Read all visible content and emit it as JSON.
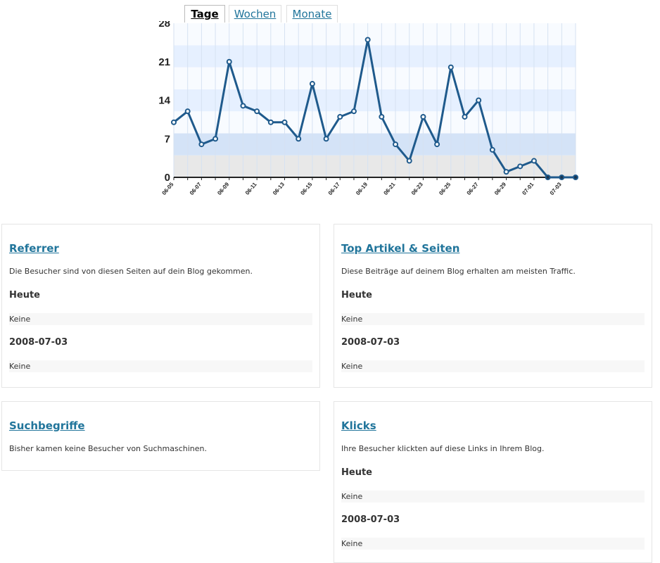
{
  "tabs": [
    {
      "label": "Tage",
      "active": true
    },
    {
      "label": "Wochen",
      "active": false
    },
    {
      "label": "Monate",
      "active": false
    }
  ],
  "chart_data": {
    "type": "line",
    "x": [
      "06-05",
      "06-06",
      "06-07",
      "06-08",
      "06-09",
      "06-10",
      "06-11",
      "06-12",
      "06-13",
      "06-14",
      "06-15",
      "06-16",
      "06-17",
      "06-18",
      "06-19",
      "06-20",
      "06-21",
      "06-22",
      "06-23",
      "06-24",
      "06-25",
      "06-26",
      "06-27",
      "06-28",
      "06-29",
      "06-30",
      "07-01",
      "07-02",
      "07-03",
      "07-04"
    ],
    "x_tick_labels": [
      "06-05",
      "06-07",
      "06-09",
      "06-11",
      "06-13",
      "06-15",
      "06-17",
      "06-19",
      "06-21",
      "06-23",
      "06-25",
      "06-27",
      "06-29",
      "07-01",
      "07-03"
    ],
    "values": [
      10,
      12,
      6,
      7,
      21,
      13,
      12,
      10,
      10,
      7,
      17,
      7,
      11,
      12,
      25,
      11,
      6,
      3,
      11,
      6,
      20,
      11,
      14,
      5,
      1,
      2,
      3,
      0,
      0,
      0
    ],
    "y_ticks": [
      0,
      7,
      14,
      21,
      28
    ],
    "ylim": [
      0,
      28
    ],
    "grid": true,
    "colors": {
      "line": "#1f5a8c",
      "band_light": "#e6f0ff",
      "band_mid": "#d4e3f7",
      "band_gray": "#e8e8e8"
    }
  },
  "cards": {
    "referrer": {
      "title": "Referrer",
      "desc": "Die Besucher sind von diesen Seiten auf dein Blog gekommen.",
      "sections": [
        {
          "label": "Heute",
          "value": "Keine"
        },
        {
          "label": "2008-07-03",
          "value": "Keine"
        }
      ]
    },
    "top": {
      "title": "Top Artikel & Seiten",
      "desc": "Diese Beiträge auf deinem Blog erhalten am meisten Traffic.",
      "sections": [
        {
          "label": "Heute",
          "value": "Keine"
        },
        {
          "label": "2008-07-03",
          "value": "Keine"
        }
      ]
    },
    "search": {
      "title": "Suchbegriffe",
      "desc": "Bisher kamen keine Besucher von Suchmaschinen."
    },
    "clicks": {
      "title": "Klicks",
      "desc": "Ihre Besucher klickten auf diese Links in Ihrem Blog.",
      "sections": [
        {
          "label": "Heute",
          "value": "Keine"
        },
        {
          "label": "2008-07-03",
          "value": "Keine"
        }
      ]
    }
  },
  "colors": {
    "link": "#21759b",
    "border": "#e5e5e5",
    "row_bg": "#f7f7f7"
  }
}
